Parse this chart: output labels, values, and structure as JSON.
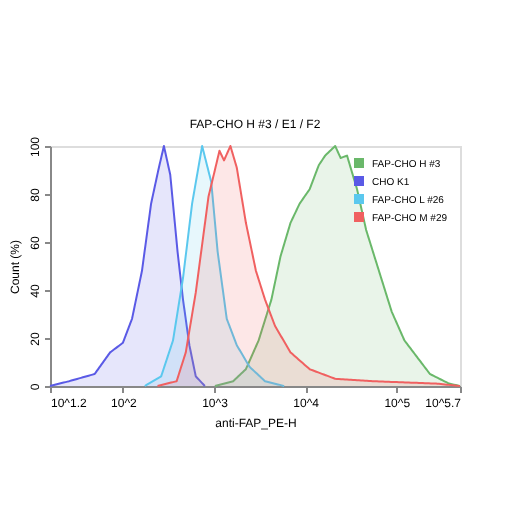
{
  "chart_data": {
    "type": "area",
    "title": "FAP-CHO H #3 / E1 / F2",
    "xlabel": "anti-FAP_PE-H",
    "ylabel": "Count (%)",
    "log": "x",
    "grid": false,
    "legend": "top right",
    "xlim": [
      15.85,
      501187
    ],
    "ylim": [
      0,
      100
    ],
    "xticks": [
      {
        "value": 15.85,
        "label": "10^1.2"
      },
      {
        "value": 100,
        "label": "10^2"
      },
      {
        "value": 1000,
        "label": "10^3"
      },
      {
        "value": 10000,
        "label": "10^4"
      },
      {
        "value": 100000,
        "label": "10^5"
      },
      {
        "value": 501187,
        "label": "10^5.7"
      }
    ],
    "yticks": [
      0,
      20,
      40,
      60,
      80,
      100
    ],
    "series": [
      {
        "name": "FAP-CHO H #3",
        "color": "#6ab86a",
        "x": [
          1023,
          1622,
          2239,
          3090,
          4266,
          5370,
          6918,
          8710,
          11220,
          14130,
          16600,
          21380,
          24550,
          28840,
          37150,
          46770,
          64570,
          89130,
          123000,
          154900,
          234400,
          380200,
          501187
        ],
        "values": [
          0,
          2,
          7,
          19,
          36,
          54,
          68,
          76,
          82,
          92,
          96,
          100,
          95,
          96,
          82,
          65,
          48,
          31,
          19,
          14,
          5,
          1,
          0
        ]
      },
      {
        "name": "CHO K1",
        "color": "#5a5ae6",
        "x": [
          15.85,
          25.7,
          49,
          72.4,
          100,
          126,
          162,
          204,
          245,
          282,
          331,
          398,
          457,
          537,
          631,
          794
        ],
        "values": [
          0,
          2,
          5,
          14,
          18,
          28,
          48,
          76,
          90,
          100,
          88,
          56,
          36,
          17,
          4,
          0
        ]
      },
      {
        "name": "FAP-CHO L #26",
        "color": "#5bc8ee",
        "x": [
          174,
          263,
          355,
          457,
          575,
          741,
          933,
          1096,
          1380,
          1778,
          2455,
          3631,
          5888
        ],
        "values": [
          0,
          4,
          19,
          45,
          76,
          100,
          85,
          56,
          28,
          17,
          8,
          2,
          0
        ]
      },
      {
        "name": "FAP-CHO M #29",
        "color": "#f06060",
        "x": [
          240,
          389,
          490,
          631,
          871,
          1023,
          1148,
          1288,
          1514,
          1778,
          2239,
          2884,
          3631,
          4677,
          6918,
          11220,
          21380,
          54950,
          275400,
          501187
        ],
        "values": [
          0,
          2,
          14,
          39,
          79,
          90,
          98,
          94,
          100,
          91,
          68,
          48,
          36,
          25,
          14,
          7,
          3,
          2,
          1,
          0
        ]
      }
    ]
  }
}
